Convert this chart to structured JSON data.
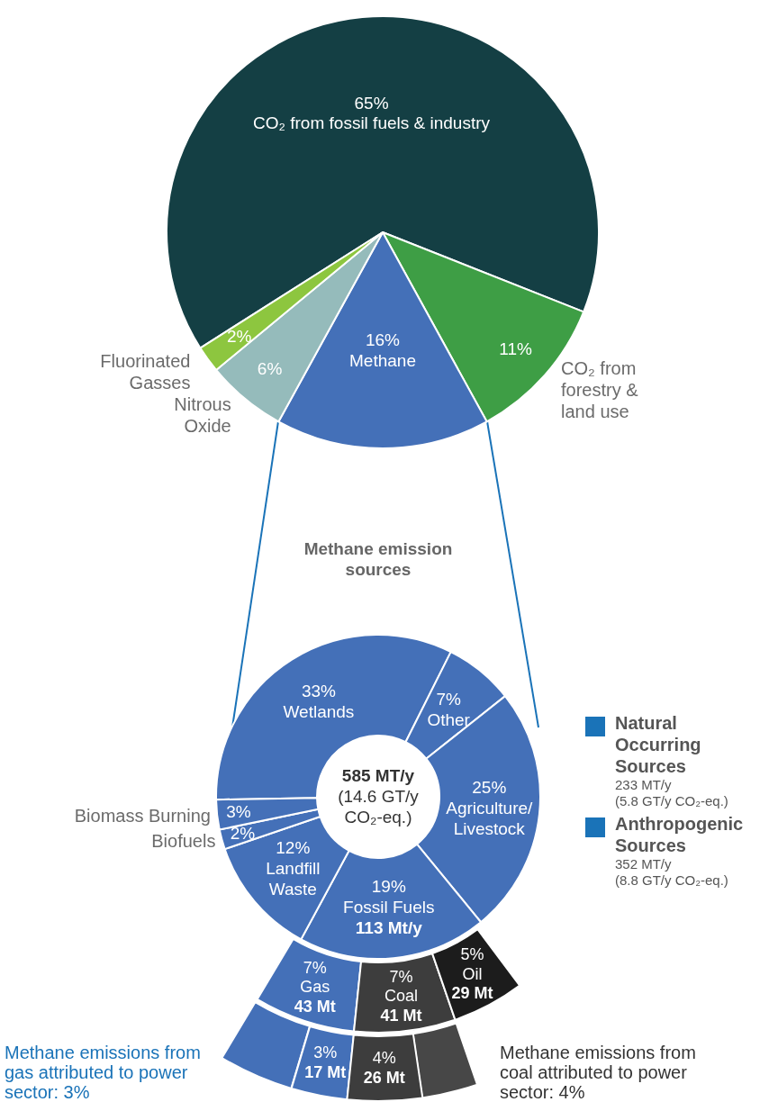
{
  "chart_data": [
    {
      "type": "pie",
      "categories": [
        "CO₂ from fossil fuels & industry",
        "CO₂ from forestry & land use",
        "Methane",
        "Nitrous Oxide",
        "Fluorinated Gasses"
      ],
      "values": [
        65,
        11,
        16,
        6,
        2
      ],
      "colors": [
        "#143f44",
        "#3e9e45",
        "#4470b8",
        "#95bbbb",
        "#8dc63f"
      ],
      "value_labels": [
        "65%",
        "11%",
        "16%",
        "6%",
        "2%"
      ]
    },
    {
      "type": "donut",
      "title": "Methane emission sources",
      "subtitle": "585 MT/y\n(14.6 GT/y\nCO₂-eq.)",
      "categories": [
        "Wetlands",
        "Other",
        "Agriculture/ Livestock",
        "Fossil Fuels",
        "Landfill Waste",
        "Biofuels",
        "Biomass Burning"
      ],
      "values": [
        33,
        7,
        25,
        19,
        12,
        2,
        3
      ],
      "colors": [
        "#4470b8",
        "#4470b8",
        "#4470b8",
        "#4470b8",
        "#4470b8",
        "#4470b8",
        "#4470b8"
      ],
      "value_labels": [
        "33%",
        "7%",
        "25%",
        "19%",
        "12%",
        "2%",
        "3%"
      ],
      "annotations": [
        {
          "text": "113 Mt/y",
          "x": "Fossil Fuels"
        },
        "Natural Occurring Sources",
        "233 MT/y",
        "(5.8 GT/y CO₂-eq.)",
        "Anthropogenic Sources",
        "352 MT/y",
        "(8.8 GT/y CO₂-eq.)"
      ]
    },
    {
      "type": "other",
      "categories": [
        "Gas",
        "Coal",
        "Oil"
      ],
      "values": [
        7,
        7,
        5
      ],
      "colors": [
        "#4470b8",
        "#3d3d3d",
        "#1c1c1c"
      ],
      "value_labels": [
        "7%",
        "7%",
        "5%"
      ],
      "annotations": [
        {
          "text": "43 Mt",
          "x": "Gas"
        },
        {
          "text": "41 Mt",
          "x": "Coal"
        },
        {
          "text": "29 Mt",
          "x": "Oil"
        }
      ]
    },
    {
      "type": "other",
      "categories": [
        null,
        null
      ],
      "values": [
        3,
        4
      ],
      "colors": [
        "#4470b8",
        "#3d3d3d"
      ],
      "value_labels": [
        "3%\n17 Mt",
        "4%\n26 Mt"
      ],
      "annotations": [
        "Methane emissions from gas attributed to power sector: 3%",
        "Methane emissions from coal attributed to power sector: 4%"
      ]
    }
  ]
}
